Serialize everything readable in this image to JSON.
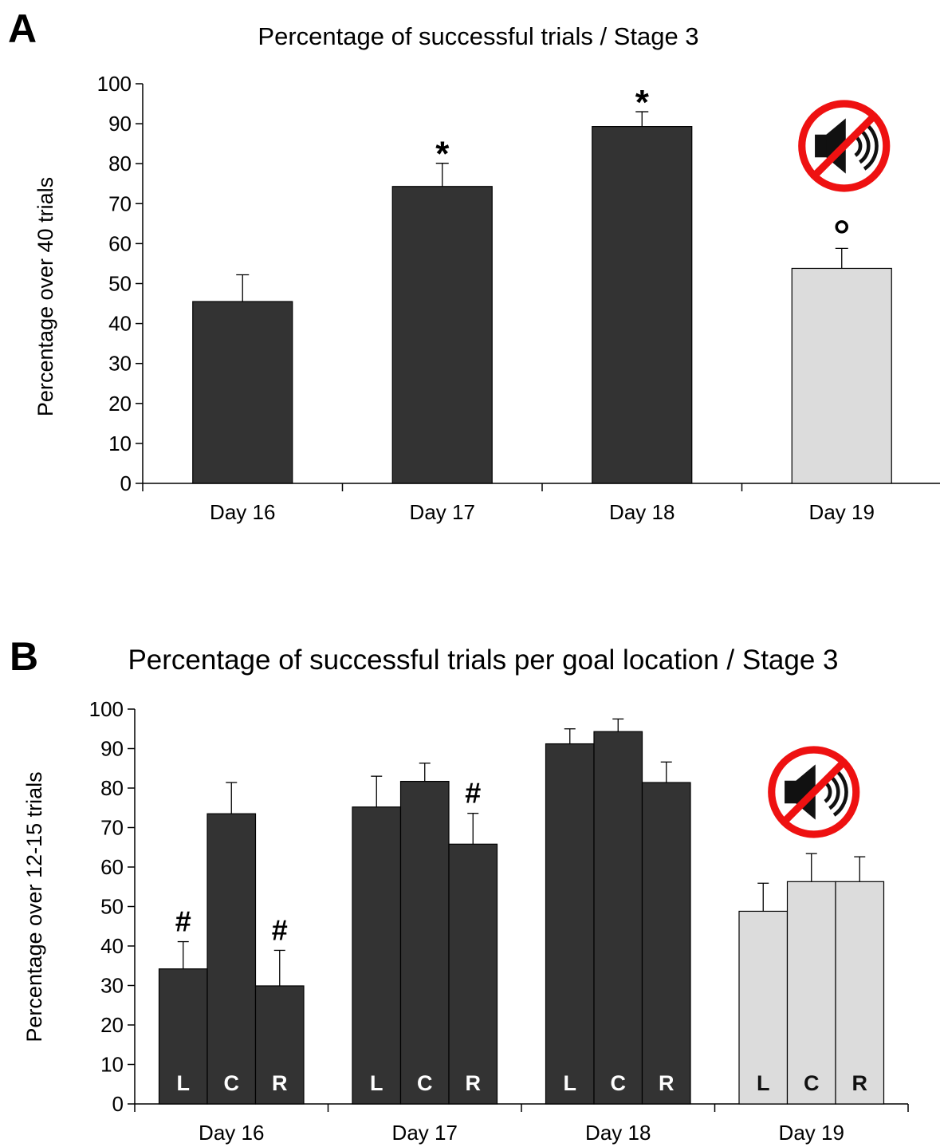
{
  "chart_data": [
    {
      "panel": "A",
      "type": "bar",
      "title": "Percentage of successful trials / Stage 3",
      "ylabel": "Percentage over 40 trials",
      "xlabel": "",
      "ylim": [
        0,
        100
      ],
      "yticks": [
        "0",
        "10",
        "20",
        "30",
        "40",
        "50",
        "60",
        "70",
        "80",
        "90",
        "100"
      ],
      "categories": [
        "Day 16",
        "Day 17",
        "Day 18",
        "Day 19"
      ],
      "values": [
        45.5,
        74.3,
        89.3,
        53.8
      ],
      "errors": [
        6.7,
        5.8,
        3.7,
        5.0
      ],
      "bar_colors": [
        "#333333",
        "#333333",
        "#333333",
        "#dcdcdc"
      ],
      "annotations": [
        "",
        "*",
        "*",
        "°"
      ],
      "mute_icon_category": "Day 19",
      "icon": "mute-speaker-icon"
    },
    {
      "panel": "B",
      "type": "bar",
      "title": "Percentage of successful trials per goal location / Stage 3",
      "ylabel": "Percentage over 12-15 trials",
      "xlabel": "",
      "ylim": [
        0,
        100
      ],
      "yticks": [
        "0",
        "10",
        "20",
        "30",
        "40",
        "50",
        "60",
        "70",
        "80",
        "90",
        "100"
      ],
      "categories": [
        "Day 16",
        "Day 17",
        "Day 18",
        "Day 19"
      ],
      "series": [
        {
          "name": "L",
          "values": [
            34.2,
            75.2,
            91.2,
            48.8
          ],
          "errors": [
            6.9,
            7.8,
            3.8,
            7.1
          ],
          "annotations": [
            "#",
            "",
            "",
            ""
          ]
        },
        {
          "name": "C",
          "values": [
            73.5,
            81.7,
            94.3,
            56.3
          ],
          "errors": [
            7.9,
            4.6,
            3.2,
            7.1
          ],
          "annotations": [
            "",
            "",
            "",
            ""
          ]
        },
        {
          "name": "R",
          "values": [
            29.9,
            65.8,
            81.4,
            56.3
          ],
          "errors": [
            9.0,
            7.8,
            5.2,
            6.3
          ],
          "annotations": [
            "#",
            "#",
            "",
            ""
          ]
        }
      ],
      "group_colors": [
        "#333333",
        "#333333",
        "#333333",
        "#dcdcdc"
      ],
      "mute_icon_category": "Day 19",
      "icon": "mute-speaker-icon"
    }
  ]
}
